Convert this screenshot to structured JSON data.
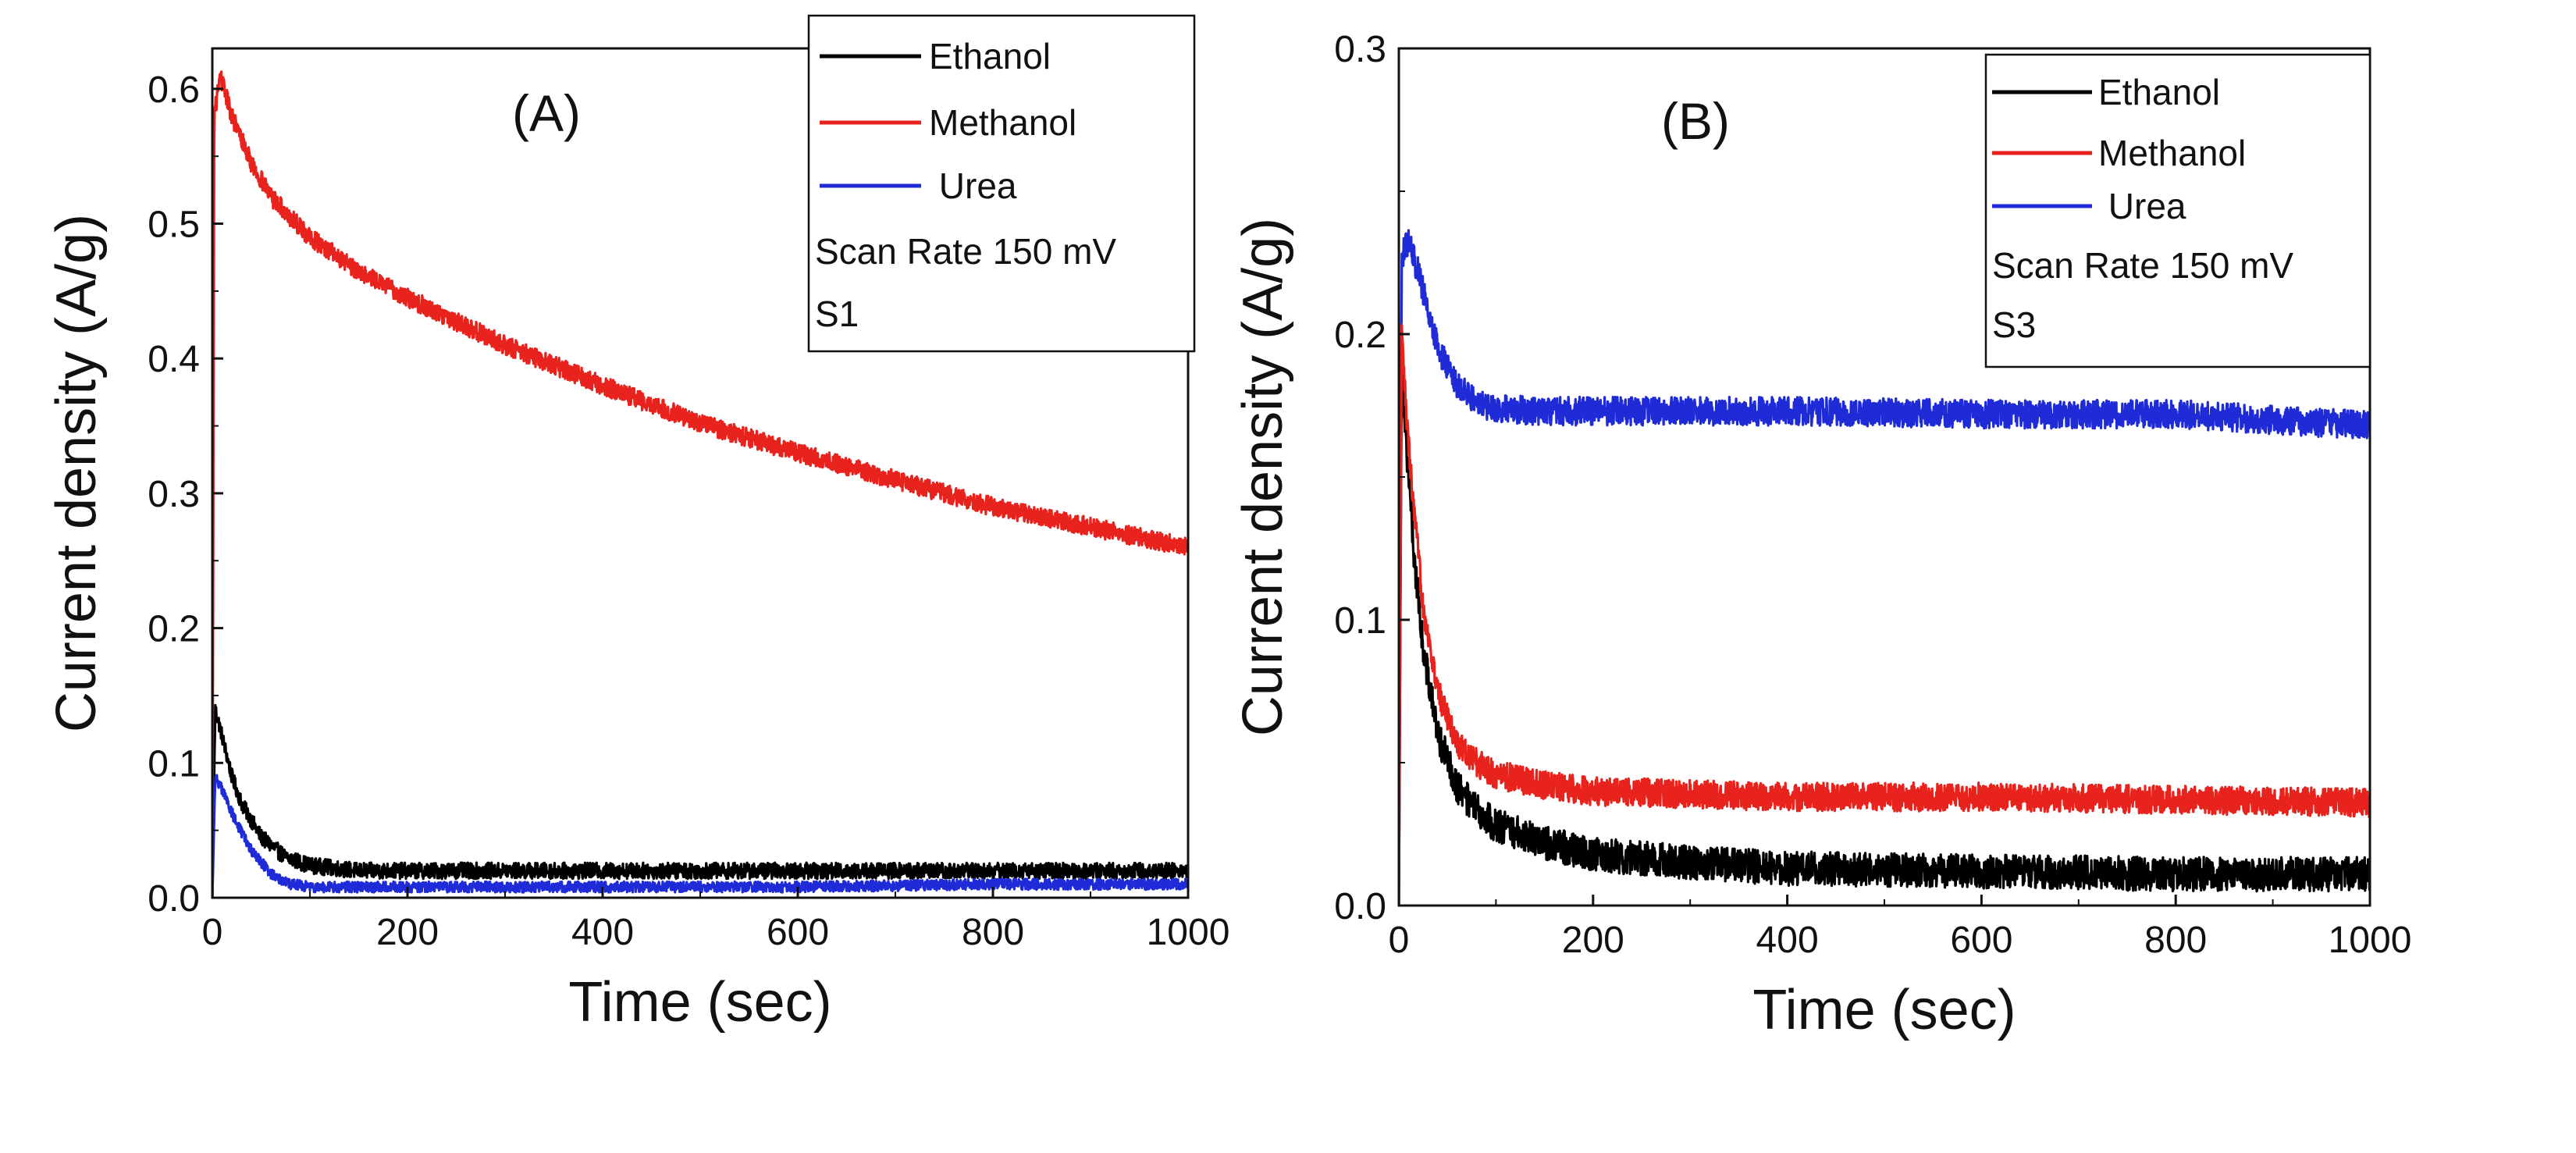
{
  "figure": {
    "background": "#ffffff"
  },
  "chart_data": [
    {
      "type": "line",
      "panel": "(A)",
      "xlabel": "Time (sec)",
      "ylabel": "Current density (A/g)",
      "xlim": [
        0,
        1000
      ],
      "ylim": [
        0.0,
        0.63
      ],
      "xticks": [
        0,
        200,
        400,
        600,
        800,
        1000
      ],
      "xtick_labels": [
        "0",
        "200",
        "400",
        "600",
        "800",
        "1000"
      ],
      "yticks": [
        0.0,
        0.1,
        0.2,
        0.3,
        0.4,
        0.5,
        0.6
      ],
      "ytick_labels": [
        "0.0",
        "0.1",
        "0.2",
        "0.3",
        "0.4",
        "0.5",
        "0.6"
      ],
      "legend_position": "top-right",
      "legend_notes": [
        "Scan Rate 150 mV",
        "S1"
      ],
      "series": [
        {
          "name": "Ethanol",
          "color": "#000000",
          "noise": 0.006,
          "x": [
            0,
            3,
            10,
            20,
            30,
            50,
            75,
            100,
            150,
            200,
            300,
            400,
            600,
            800,
            1000
          ],
          "y": [
            0.0,
            0.14,
            0.12,
            0.09,
            0.07,
            0.045,
            0.03,
            0.024,
            0.02,
            0.02,
            0.02,
            0.02,
            0.02,
            0.02,
            0.02
          ]
        },
        {
          "name": "Methanol",
          "color": "#e8221c",
          "noise": 0.007,
          "x": [
            0,
            2,
            8,
            20,
            40,
            60,
            100,
            150,
            200,
            300,
            400,
            500,
            600,
            700,
            800,
            900,
            1000
          ],
          "y": [
            0.0,
            0.58,
            0.61,
            0.58,
            0.545,
            0.52,
            0.49,
            0.465,
            0.445,
            0.41,
            0.38,
            0.352,
            0.33,
            0.31,
            0.29,
            0.275,
            0.26
          ]
        },
        {
          "name": " Urea",
          "color": "#1e2bd6",
          "noise": 0.004,
          "x": [
            0,
            3,
            10,
            25,
            40,
            60,
            80,
            100,
            150,
            200,
            400,
            600,
            800,
            1000
          ],
          "y": [
            0.0,
            0.09,
            0.08,
            0.055,
            0.035,
            0.018,
            0.01,
            0.008,
            0.008,
            0.008,
            0.008,
            0.008,
            0.01,
            0.01
          ]
        }
      ]
    },
    {
      "type": "line",
      "panel": "(B)",
      "xlabel": "Time (sec)",
      "ylabel": "Current density (A/g)",
      "xlim": [
        0,
        1000
      ],
      "ylim": [
        0.0,
        0.3
      ],
      "xticks": [
        0,
        200,
        400,
        600,
        800,
        1000
      ],
      "xtick_labels": [
        "0",
        "200",
        "400",
        "600",
        "800",
        "1000"
      ],
      "yticks": [
        0.0,
        0.1,
        0.2,
        0.3
      ],
      "ytick_labels": [
        "0.0",
        "0.1",
        "0.2",
        "0.3"
      ],
      "legend_position": "top-right",
      "legend_notes": [
        "Scan Rate 150 mV",
        "S3"
      ],
      "series": [
        {
          "name": "Ethanol",
          "color": "#000000",
          "noise": 0.006,
          "x": [
            0,
            3,
            8,
            15,
            25,
            40,
            60,
            80,
            100,
            150,
            200,
            300,
            400,
            600,
            800,
            1000
          ],
          "y": [
            0.0,
            0.19,
            0.16,
            0.125,
            0.09,
            0.06,
            0.042,
            0.033,
            0.028,
            0.022,
            0.018,
            0.015,
            0.013,
            0.012,
            0.011,
            0.011
          ]
        },
        {
          "name": "Methanol",
          "color": "#e8221c",
          "noise": 0.005,
          "x": [
            0,
            3,
            8,
            15,
            25,
            40,
            60,
            80,
            100,
            150,
            200,
            300,
            400,
            600,
            800,
            1000
          ],
          "y": [
            0.0,
            0.2,
            0.17,
            0.14,
            0.105,
            0.075,
            0.057,
            0.05,
            0.046,
            0.042,
            0.04,
            0.039,
            0.038,
            0.038,
            0.037,
            0.036
          ]
        },
        {
          "name": " Urea",
          "color": "#1e2bd6",
          "noise": 0.005,
          "x": [
            0,
            3,
            10,
            20,
            30,
            40,
            60,
            80,
            100,
            150,
            200,
            300,
            400,
            600,
            800,
            1000
          ],
          "y": [
            0.0,
            0.228,
            0.232,
            0.222,
            0.208,
            0.195,
            0.182,
            0.176,
            0.174,
            0.173,
            0.173,
            0.173,
            0.173,
            0.172,
            0.172,
            0.168
          ]
        }
      ]
    }
  ]
}
